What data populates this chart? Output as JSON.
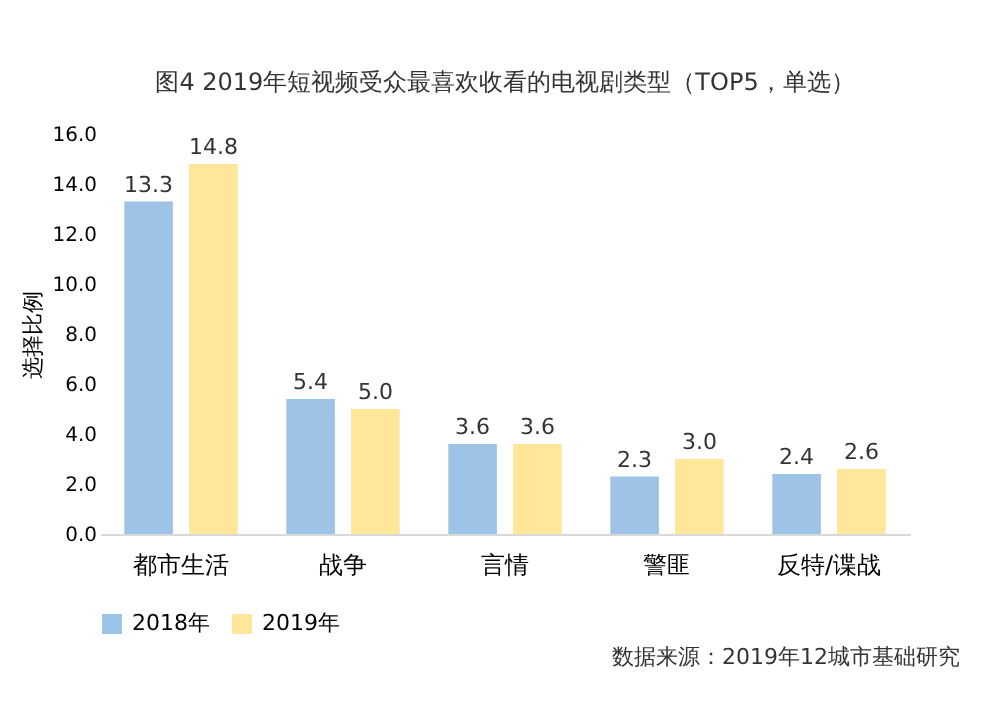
{
  "chart_data": {
    "type": "bar",
    "title": "图4  2019年短视频受众最喜欢收看的电视剧类型（TOP5，单选）",
    "ylabel": "选择比例",
    "categories": [
      "都市生活",
      "战争",
      "言情",
      "警匪",
      "反特/谍战"
    ],
    "series": [
      {
        "name": "2018年",
        "color": "#9dc3e6",
        "values": [
          13.3,
          5.4,
          3.6,
          2.3,
          2.4
        ],
        "value_labels": [
          "13.3",
          "5.4",
          "3.6",
          "2.3",
          "2.4"
        ]
      },
      {
        "name": "2019年",
        "color": "#ffe699",
        "values": [
          14.8,
          5.0,
          3.6,
          3.0,
          2.6
        ],
        "value_labels": [
          "14.8",
          "5.0",
          "3.6",
          "3.0",
          "2.6"
        ]
      }
    ],
    "ylim": [
      0,
      16
    ],
    "yticks": [
      {
        "value": 0,
        "label": "0.0"
      },
      {
        "value": 2,
        "label": "2.0"
      },
      {
        "value": 4,
        "label": "4.0"
      },
      {
        "value": 6,
        "label": "6.0"
      },
      {
        "value": 8,
        "label": "8.0"
      },
      {
        "value": 10,
        "label": "10.0"
      },
      {
        "value": 12,
        "label": "12.0"
      },
      {
        "value": 14,
        "label": "14.0"
      },
      {
        "value": 16,
        "label": "16.0"
      }
    ],
    "data_labels": true,
    "grid": false,
    "legend": "bottom",
    "annotations": [
      "数据来源：2019年12城市基础研究"
    ]
  }
}
